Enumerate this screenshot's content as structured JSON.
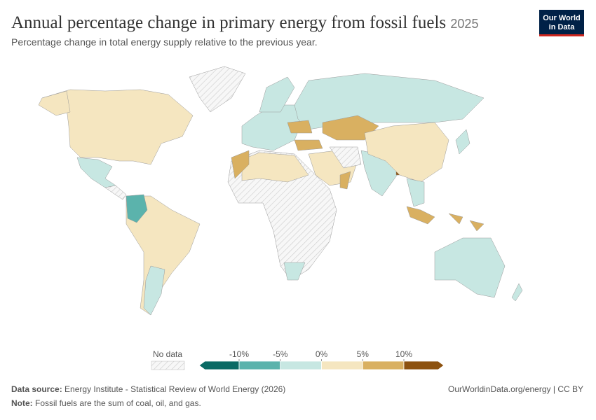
{
  "header": {
    "title": "Annual percentage change in primary energy from fossil fuels",
    "year": "2025",
    "subtitle": "Percentage change in total energy supply relative to the previous year.",
    "logo": [
      "Our World",
      "in Data"
    ]
  },
  "legend": {
    "no_data": "No data",
    "ticks": [
      {
        "value": -10,
        "label": "-10%"
      },
      {
        "value": -5,
        "label": "-5%"
      },
      {
        "value": 0,
        "label": "0%"
      },
      {
        "value": 5,
        "label": "5%"
      },
      {
        "value": 10,
        "label": "10%"
      }
    ],
    "colors": [
      "#0a6a64",
      "#5bb3ac",
      "#c7e7e2",
      "#f5e6c0",
      "#d9b061",
      "#8d520f"
    ]
  },
  "footer": {
    "source_label": "Data source:",
    "source": "Energy Institute - Statistical Review of World Energy (2026)",
    "url": "OurWorldinData.org/energy | CC BY",
    "note_label": "Note:",
    "note": "Fossil fuels are the sum of coal, oil, and gas."
  }
}
